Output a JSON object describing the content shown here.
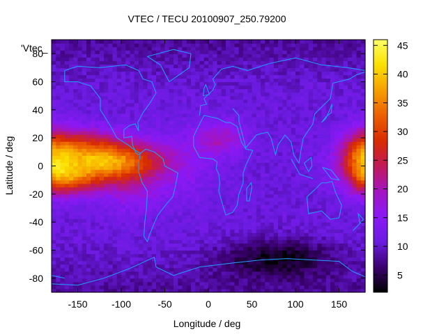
{
  "chart_data": {
    "type": "heatmap",
    "title": "VTEC / TECU 20100907_250.79200",
    "xlabel": "Longitude / deg",
    "ylabel": "Latitude / deg",
    "legend_label": "'Vtec_",
    "xlim": [
      -180,
      180
    ],
    "ylim": [
      -90,
      90
    ],
    "xticks": [
      -150,
      -100,
      -50,
      0,
      50,
      100,
      150
    ],
    "yticks": [
      -80,
      -60,
      -40,
      -20,
      0,
      20,
      40,
      60,
      80
    ],
    "colorbar": {
      "range": [
        2,
        46
      ],
      "ticks": [
        5,
        10,
        15,
        20,
        25,
        30,
        35,
        40,
        45
      ]
    },
    "grid": "off",
    "colormap": [
      "#000000",
      "#3b0070",
      "#6a1be0",
      "#8a19f5",
      "#a314c0",
      "#c01a58",
      "#d82c00",
      "#ec6000",
      "#f6a000",
      "#fbe000",
      "#ffff66"
    ],
    "coast_color": "#20a0ff",
    "features": [
      {
        "lon": -120,
        "lat": 4,
        "sigma_lon": 45,
        "sigma_lat": 10,
        "amp": 26
      },
      {
        "lon": -160,
        "lat": -10,
        "sigma_lon": 25,
        "sigma_lat": 8,
        "amp": 14
      },
      {
        "lon": -150,
        "lat": 18,
        "sigma_lon": 30,
        "sigma_lat": 8,
        "amp": 8
      },
      {
        "lon": -90,
        "lat": -15,
        "sigma_lon": 25,
        "sigma_lat": 12,
        "amp": 6
      },
      {
        "lon": 178,
        "lat": 5,
        "sigma_lon": 18,
        "sigma_lat": 14,
        "amp": 16
      },
      {
        "lon": 15,
        "lat": 20,
        "sigma_lon": 20,
        "sigma_lat": 8,
        "amp": 8
      },
      {
        "lon": -30,
        "lat": 0,
        "sigma_lon": 30,
        "sigma_lat": 20,
        "amp": 3
      }
    ],
    "trough": {
      "lon": 80,
      "lat": -65,
      "sigma_lon": 45,
      "sigma_lat": 10,
      "depth": 7
    },
    "base_value": 11
  }
}
